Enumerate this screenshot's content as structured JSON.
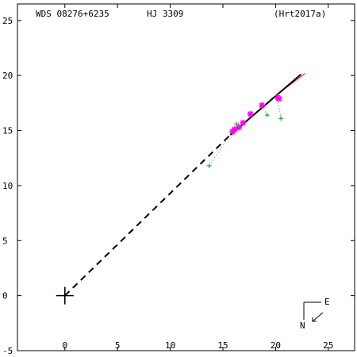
{
  "header": {
    "wds_id": "WDS 08276+6235",
    "name": "HJ 3309",
    "reference": "(Hrt2017a)"
  },
  "compass": {
    "east_label": "E",
    "north_label": "N"
  },
  "colors": {
    "axis": "#000000",
    "orbit": "#000000",
    "measure_star": "#ff00ff",
    "measure_plus": "#00a000",
    "residual": "#00a000",
    "fit_line": "#ff0000",
    "primary": "#000000"
  },
  "chart_data": {
    "type": "scatter",
    "title": "",
    "xlabel": "",
    "ylabel": "",
    "xlim": [
      -4.5,
      27.5
    ],
    "ylim": [
      -5.0,
      26.5
    ],
    "x_ticks": [
      0,
      5,
      10,
      15,
      20,
      25
    ],
    "y_ticks": [
      -5,
      0,
      5,
      10,
      15,
      20,
      25
    ],
    "x_tick_labels": [
      "0",
      "5",
      "10",
      "15",
      "20",
      "25"
    ],
    "y_tick_labels": [
      "-5",
      "0",
      "5",
      "10",
      "15",
      "20",
      "25"
    ],
    "grid": false,
    "primary_star": [
      0,
      0
    ],
    "orbit_dashed": [
      [
        0,
        0
      ],
      [
        15.7,
        14.6
      ]
    ],
    "orbit_solid": [
      [
        15.7,
        14.6
      ],
      [
        22.4,
        20.1
      ]
    ],
    "fit_line": [
      [
        19.5,
        17.8
      ],
      [
        22.8,
        20.2
      ]
    ],
    "series": [
      {
        "marker": "star",
        "points": [
          [
            15.9,
            14.9
          ],
          [
            16.1,
            15.1
          ],
          [
            16.5,
            15.3
          ],
          [
            16.9,
            15.7
          ],
          [
            17.6,
            16.5
          ],
          [
            18.7,
            17.3
          ],
          [
            20.2,
            18.0
          ],
          [
            20.3,
            17.9
          ]
        ]
      },
      {
        "marker": "plus",
        "points": [
          [
            13.7,
            11.8
          ],
          [
            16.3,
            15.6
          ],
          [
            19.2,
            16.4
          ],
          [
            20.5,
            16.1
          ]
        ]
      }
    ],
    "residuals": [
      [
        [
          13.7,
          11.8
        ],
        [
          15.9,
          14.9
        ]
      ],
      [
        [
          19.2,
          16.4
        ],
        [
          18.7,
          17.3
        ]
      ],
      [
        [
          20.5,
          16.1
        ],
        [
          20.2,
          18.0
        ]
      ]
    ]
  }
}
